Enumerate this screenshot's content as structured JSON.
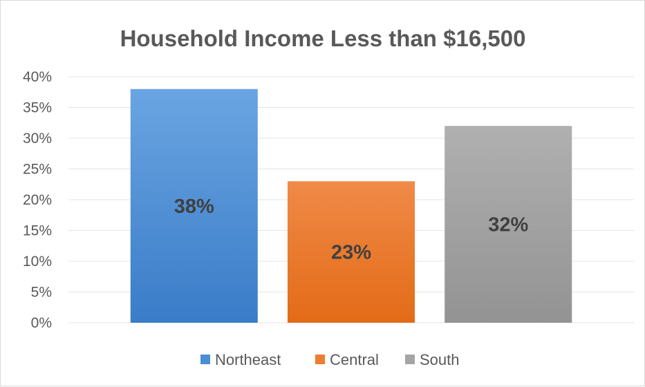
{
  "chart_data": {
    "type": "bar",
    "title": "Household Income Less than $16,500",
    "xlabel": "",
    "ylabel": "",
    "ylim": [
      0,
      40
    ],
    "y_ticks": [
      "0%",
      "5%",
      "10%",
      "15%",
      "20%",
      "25%",
      "30%",
      "35%",
      "40%"
    ],
    "grid": true,
    "legend_position": "bottom",
    "series": [
      {
        "name": "Northeast",
        "values": [
          38
        ],
        "label": "38%",
        "color": "#4a8ed6"
      },
      {
        "name": "Central",
        "values": [
          23
        ],
        "label": "23%",
        "color": "#ee7d31"
      },
      {
        "name": "South",
        "values": [
          32
        ],
        "label": "32%",
        "color": "#a5a5a5"
      }
    ]
  }
}
